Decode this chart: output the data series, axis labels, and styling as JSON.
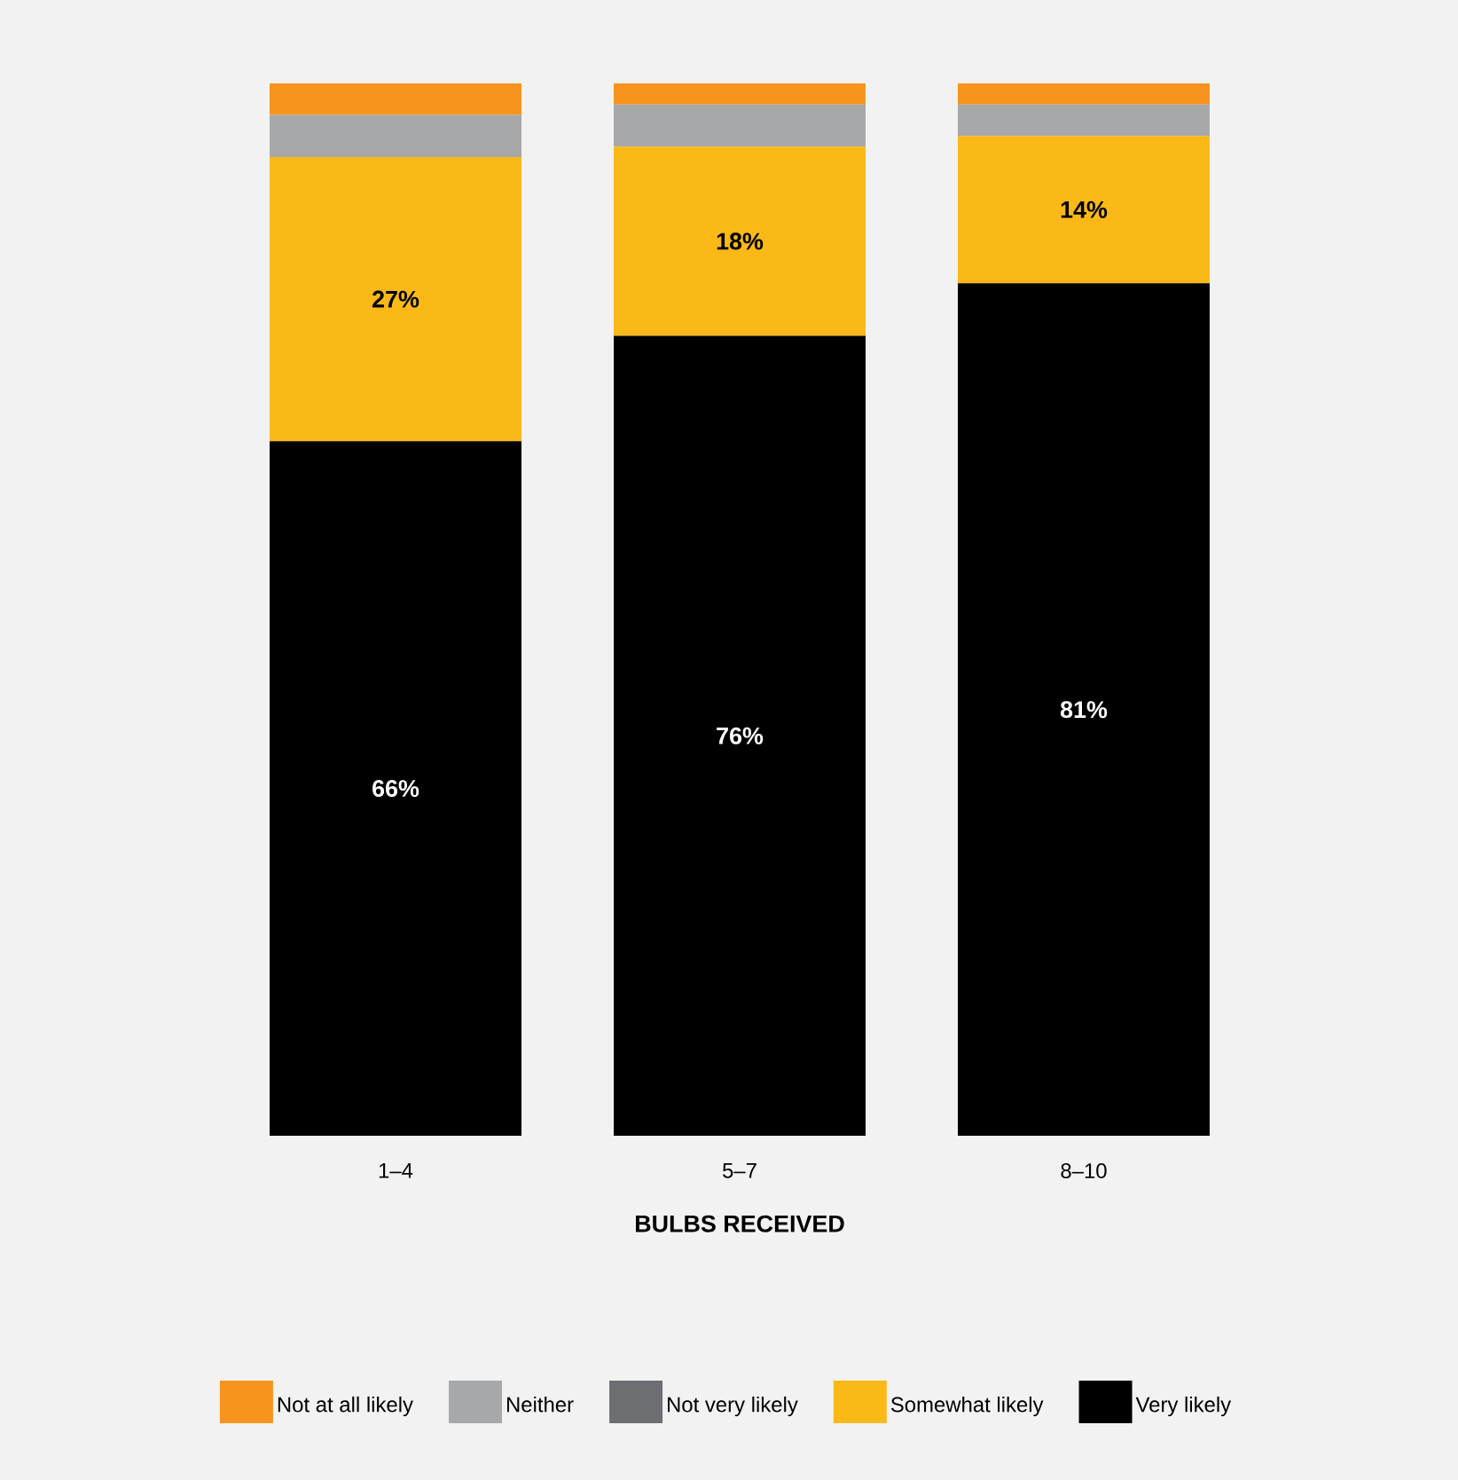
{
  "chart_data": {
    "type": "bar",
    "stacked": true,
    "xlabel": "BULBS RECEIVED",
    "categories": [
      "1–4",
      "5–7",
      "8–10"
    ],
    "legend": "bottom",
    "series": [
      {
        "name": "Very likely",
        "color": "#000000",
        "values": [
          66,
          76,
          81
        ],
        "value_labels": [
          "66%",
          "76%",
          "81%"
        ]
      },
      {
        "name": "Somewhat likely",
        "color": "#fbb917",
        "values": [
          27,
          18,
          14
        ],
        "value_labels": [
          "27%",
          "18%",
          "14%"
        ]
      },
      {
        "name": "Not very likely",
        "color": "#6d6e71",
        "values": [
          0,
          0,
          0
        ]
      },
      {
        "name": "Neither",
        "color": "#a7a8aa",
        "values": [
          4,
          4,
          3
        ]
      },
      {
        "name": "Not at all likely",
        "color": "#f7941d",
        "values": [
          3,
          2,
          2
        ]
      }
    ]
  }
}
